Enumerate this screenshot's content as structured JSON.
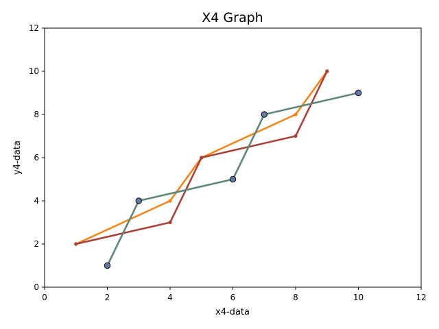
{
  "chart_data": {
    "type": "line",
    "title": "X4 Graph",
    "xlabel": "x4-data",
    "ylabel": "y4-data",
    "xlim": [
      0,
      12
    ],
    "ylim": [
      0,
      12
    ],
    "xticks": [
      0,
      2,
      4,
      6,
      8,
      10,
      12
    ],
    "yticks": [
      0,
      2,
      4,
      6,
      8,
      10,
      12
    ],
    "grid": false,
    "series": [
      {
        "color": "#f0861c",
        "marker": "dot",
        "points": [
          [
            1,
            2
          ],
          [
            4,
            4
          ],
          [
            5,
            6
          ],
          [
            8,
            8
          ],
          [
            9,
            10
          ]
        ]
      },
      {
        "color": "#a8433c",
        "marker": "dot",
        "points": [
          [
            1,
            2
          ],
          [
            4,
            3
          ],
          [
            5,
            6
          ],
          [
            8,
            7
          ],
          [
            9,
            10
          ]
        ]
      },
      {
        "color": "#5e867a",
        "marker": "circle",
        "marker_fill": "#6678a6",
        "points": [
          [
            2,
            1
          ],
          [
            3,
            4
          ],
          [
            6,
            5
          ],
          [
            7,
            8
          ],
          [
            10,
            9
          ]
        ]
      }
    ]
  }
}
